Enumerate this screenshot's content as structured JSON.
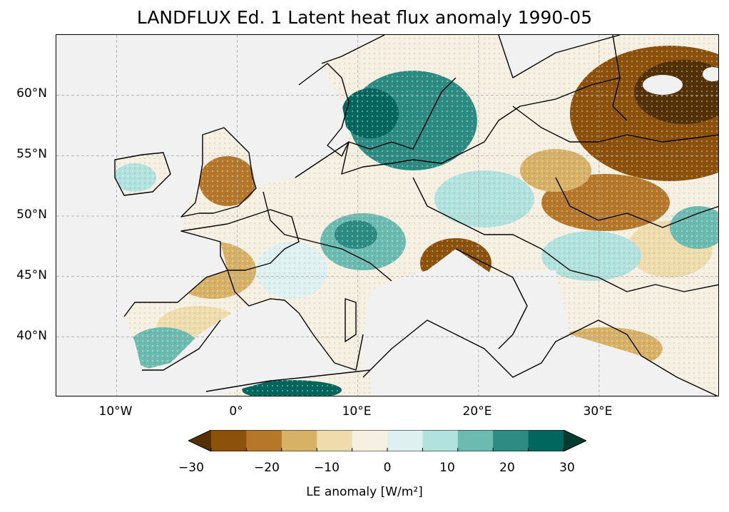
{
  "title": "LANDFLUX Ed. 1 Latent heat flux anomaly 1990-05",
  "map": {
    "extent": {
      "lon_min": -15,
      "lon_max": 40,
      "lat_min": 35,
      "lat_max": 65
    },
    "lat_ticks": [
      {
        "value": 60,
        "label": "60°N"
      },
      {
        "value": 55,
        "label": "55°N"
      },
      {
        "value": 50,
        "label": "50°N"
      },
      {
        "value": 45,
        "label": "45°N"
      },
      {
        "value": 40,
        "label": "40°N"
      }
    ],
    "lon_ticks": [
      {
        "value": -10,
        "label": "10°W"
      },
      {
        "value": 0,
        "label": "0°"
      },
      {
        "value": 10,
        "label": "10°E"
      },
      {
        "value": 20,
        "label": "20°E"
      },
      {
        "value": 30,
        "label": "30°E"
      }
    ],
    "ocean_color": "#f1f1f1",
    "border_color": "#000000",
    "gridline_color": "#a9a9a9"
  },
  "colorbar": {
    "label": "LE anomaly [W/m²]",
    "min": -30,
    "max": 30,
    "step": 5,
    "extend": "both",
    "colors": [
      "#543005",
      "#8c510a",
      "#b57729",
      "#d7b165",
      "#efdcad",
      "#f5f0e1",
      "#def0ef",
      "#b2e2dd",
      "#6cbbb0",
      "#2c8c83",
      "#01665e",
      "#003c30"
    ],
    "ticks": [
      {
        "value": -30,
        "label": "−30"
      },
      {
        "value": -20,
        "label": "−20"
      },
      {
        "value": -10,
        "label": "−10"
      },
      {
        "value": 0,
        "label": "0"
      },
      {
        "value": 10,
        "label": "10"
      },
      {
        "value": 20,
        "label": "20"
      },
      {
        "value": 30,
        "label": "30"
      }
    ]
  }
}
